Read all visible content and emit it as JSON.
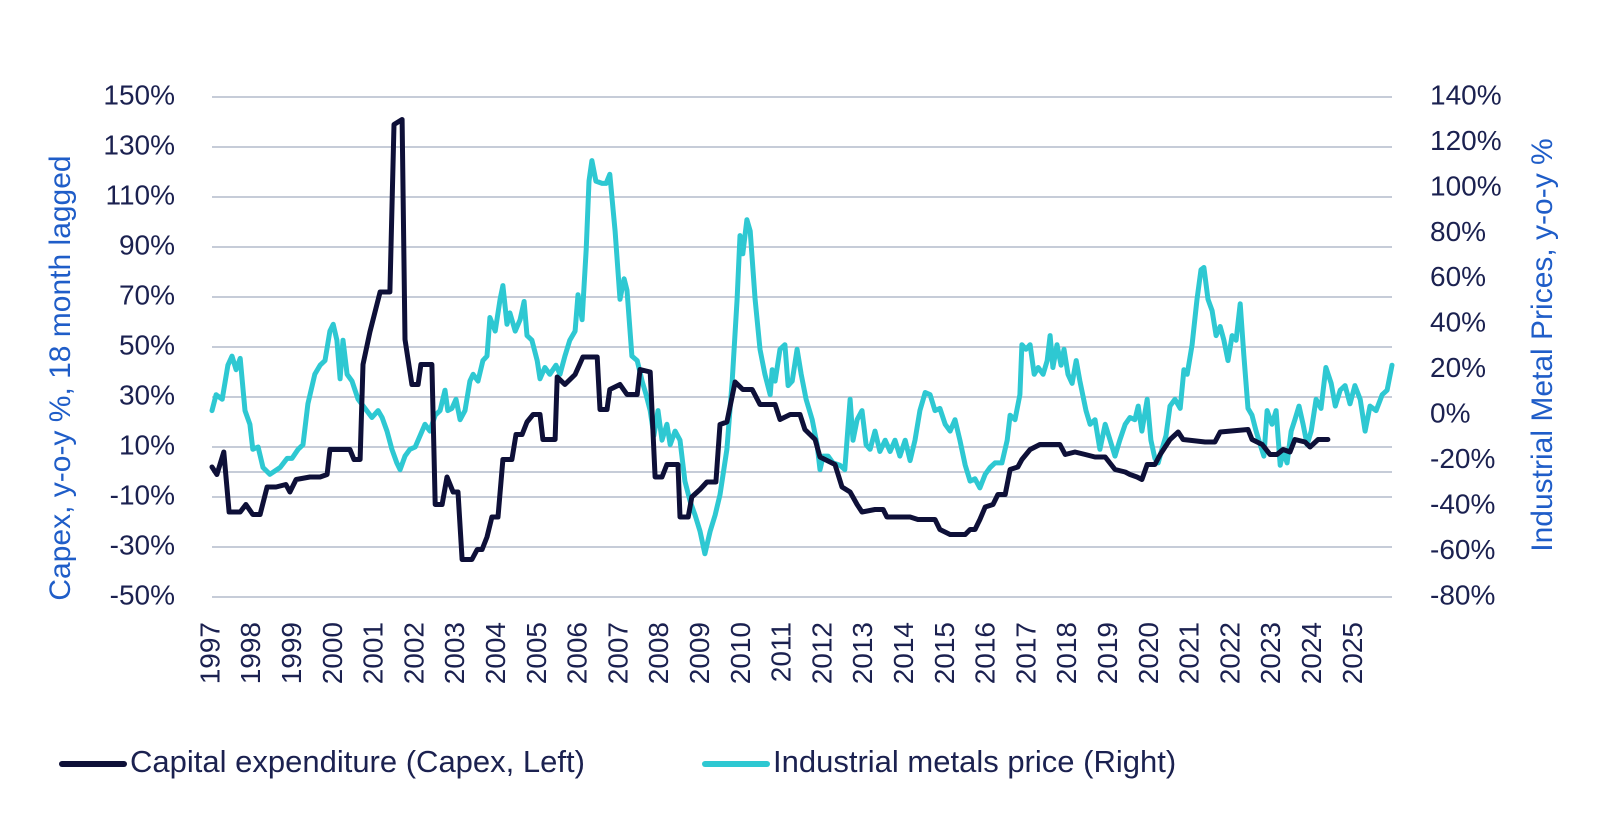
{
  "chart_data": {
    "type": "line",
    "y_label": "Capex, y-o-y %, 18 month lagged",
    "y2_label": "Industrial Metal Prices, y-o-y %",
    "xlim": [
      1997,
      2025.92
    ],
    "xticks": [
      1997,
      1998,
      1999,
      2000,
      2001,
      2002,
      2003,
      2004,
      2005,
      2006,
      2007,
      2008,
      2009,
      2010,
      2011,
      2012,
      2013,
      2014,
      2015,
      2016,
      2017,
      2018,
      2019,
      2020,
      2021,
      2022,
      2023,
      2024,
      2025
    ],
    "ylim": [
      -50,
      150
    ],
    "yticks": [
      {
        "value": -50,
        "label": "-50%"
      },
      {
        "value": -30,
        "label": "-30%"
      },
      {
        "value": -10,
        "label": "-10%"
      },
      {
        "value": 10,
        "label": "10%"
      },
      {
        "value": 30,
        "label": "30%"
      },
      {
        "value": 50,
        "label": "50%"
      },
      {
        "value": 70,
        "label": "70%"
      },
      {
        "value": 90,
        "label": "90%"
      },
      {
        "value": 110,
        "label": "110%"
      },
      {
        "value": 130,
        "label": "130%"
      },
      {
        "value": 150,
        "label": "150%"
      }
    ],
    "y2lim": [
      -80,
      140
    ],
    "y2ticks": [
      {
        "value": -80,
        "label": "-80%"
      },
      {
        "value": -60,
        "label": "-60%"
      },
      {
        "value": -40,
        "label": "-40%"
      },
      {
        "value": -20,
        "label": "-20%"
      },
      {
        "value": 0,
        "label": "0%"
      },
      {
        "value": 20,
        "label": "20%"
      },
      {
        "value": 40,
        "label": "40%"
      },
      {
        "value": 60,
        "label": "60%"
      },
      {
        "value": 80,
        "label": "80%"
      },
      {
        "value": 100,
        "label": "100%"
      },
      {
        "value": 120,
        "label": "120%"
      },
      {
        "value": 140,
        "label": "140%"
      }
    ],
    "grid": true,
    "legend": "bottom",
    "series": [
      {
        "name": "Capital expenditure (Capex, Left)",
        "color": "#0e1038",
        "axis": "y",
        "x": [
          1997.0,
          1997.12,
          1997.29,
          1997.42,
          1997.69,
          1997.83,
          1998.0,
          1998.18,
          1998.35,
          1998.57,
          1998.81,
          1998.91,
          1999.06,
          1999.4,
          1999.65,
          1999.82,
          1999.89,
          2000.21,
          2000.38,
          2000.48,
          2000.63,
          2000.7,
          2000.87,
          2001.12,
          2001.36,
          2001.46,
          2001.66,
          2001.73,
          2001.9,
          2002.05,
          2002.12,
          2002.39,
          2002.47,
          2002.64,
          2002.76,
          2002.91,
          2003.03,
          2003.13,
          2003.37,
          2003.5,
          2003.62,
          2003.74,
          2003.86,
          2004.01,
          2004.13,
          2004.35,
          2004.45,
          2004.6,
          2004.72,
          2004.87,
          2005.04,
          2005.11,
          2005.41,
          2005.46,
          2005.65,
          2005.9,
          2006.09,
          2006.44,
          2006.51,
          2006.68,
          2006.75,
          2007.0,
          2007.17,
          2007.42,
          2007.49,
          2007.74,
          2007.86,
          2008.03,
          2008.15,
          2008.42,
          2008.47,
          2008.67,
          2008.76,
          2008.96,
          2009.13,
          2009.35,
          2009.45,
          2009.62,
          2009.82,
          2010.01,
          2010.24,
          2010.43,
          2010.8,
          2010.92,
          2011.17,
          2011.41,
          2011.53,
          2011.78,
          2011.9,
          2012.27,
          2012.44,
          2012.64,
          2012.81,
          2012.93,
          2013.25,
          2013.45,
          2013.54,
          2014.11,
          2014.3,
          2014.72,
          2014.84,
          2015.09,
          2015.46,
          2015.58,
          2015.7,
          2015.82,
          2015.95,
          2016.14,
          2016.26,
          2016.44,
          2016.56,
          2016.75,
          2016.85,
          2017.05,
          2017.29,
          2017.78,
          2017.91,
          2018.15,
          2018.4,
          2018.64,
          2018.89,
          2019.13,
          2019.38,
          2019.5,
          2019.67,
          2019.79,
          2019.92,
          2020.11,
          2020.24,
          2020.48,
          2020.68,
          2020.8,
          2021.34,
          2021.58,
          2021.71,
          2022.39,
          2022.49,
          2022.74,
          2022.93,
          2023.1,
          2023.25,
          2023.42,
          2023.54,
          2023.79,
          2023.91,
          2024.11,
          2024.35
        ],
        "values": [
          2,
          -1,
          8,
          -16,
          -16,
          -13,
          -17,
          -17,
          -6,
          -6,
          -5,
          -8,
          -3,
          -2,
          -2,
          -1,
          9,
          9,
          9,
          5,
          5,
          43,
          56,
          72,
          72,
          139,
          141,
          53,
          35,
          35,
          43,
          43,
          -13,
          -13,
          -2,
          -8,
          -8,
          -35,
          -35,
          -31,
          -31,
          -26,
          -18,
          -18,
          5,
          5,
          15,
          15,
          20,
          23,
          23,
          13,
          13,
          38,
          35,
          39,
          46,
          46,
          25,
          25,
          33,
          35,
          31,
          31,
          41,
          40,
          -2,
          -2,
          3,
          3,
          -18,
          -18,
          -10,
          -7,
          -4,
          -4,
          19,
          20,
          36,
          33,
          33,
          27,
          27,
          21,
          23,
          23,
          17,
          13,
          6,
          3,
          -6,
          -8,
          -13,
          -16,
          -15,
          -15,
          -18,
          -18,
          -19,
          -19,
          -23,
          -25,
          -25,
          -23,
          -23,
          -19,
          -14,
          -13,
          -9,
          -9,
          1,
          2,
          5,
          9,
          11,
          11,
          7,
          8,
          7,
          6,
          6,
          1,
          0,
          -1,
          -2,
          -3,
          3,
          3,
          7,
          13,
          16,
          13,
          12,
          12,
          16,
          17,
          13,
          11,
          7,
          7,
          9,
          8,
          13,
          12,
          10,
          13,
          13
        ]
      },
      {
        "name": "Industrial metals price (Right)",
        "color": "#2ec8d2",
        "axis": "y2",
        "x": [
          1997.0,
          1997.1,
          1997.25,
          1997.39,
          1997.49,
          1997.59,
          1997.69,
          1997.81,
          1997.93,
          1998.0,
          1998.13,
          1998.25,
          1998.42,
          1998.67,
          1998.84,
          1998.96,
          1999.11,
          1999.23,
          1999.35,
          1999.52,
          1999.65,
          1999.77,
          1999.89,
          1999.97,
          2000.06,
          2000.14,
          2000.21,
          2000.31,
          2000.43,
          2000.58,
          2000.75,
          2000.92,
          2001.07,
          2001.17,
          2001.29,
          2001.41,
          2001.53,
          2001.61,
          2001.73,
          2001.85,
          2001.98,
          2002.1,
          2002.22,
          2002.34,
          2002.47,
          2002.59,
          2002.71,
          2002.78,
          2002.88,
          2002.98,
          2003.08,
          2003.2,
          2003.32,
          2003.4,
          2003.52,
          2003.64,
          2003.74,
          2003.81,
          2003.94,
          2004.06,
          2004.13,
          2004.23,
          2004.3,
          2004.43,
          2004.55,
          2004.65,
          2004.72,
          2004.84,
          2004.97,
          2005.04,
          2005.16,
          2005.28,
          2005.43,
          2005.53,
          2005.65,
          2005.77,
          2005.9,
          2005.97,
          2006.07,
          2006.17,
          2006.24,
          2006.31,
          2006.41,
          2006.56,
          2006.66,
          2006.75,
          2006.88,
          2007.0,
          2007.1,
          2007.17,
          2007.29,
          2007.42,
          2007.54,
          2007.64,
          2007.74,
          2007.83,
          2007.93,
          2008.03,
          2008.15,
          2008.23,
          2008.35,
          2008.47,
          2008.59,
          2008.72,
          2008.84,
          2008.96,
          2009.08,
          2009.21,
          2009.33,
          2009.45,
          2009.62,
          2009.75,
          2009.87,
          2009.94,
          2010.01,
          2010.11,
          2010.19,
          2010.31,
          2010.43,
          2010.55,
          2010.68,
          2010.73,
          2010.8,
          2010.92,
          2011.04,
          2011.12,
          2011.22,
          2011.34,
          2011.44,
          2011.56,
          2011.71,
          2011.83,
          2011.9,
          2011.98,
          2012.1,
          2012.22,
          2012.39,
          2012.51,
          2012.64,
          2012.71,
          2012.81,
          2012.93,
          2013.03,
          2013.13,
          2013.25,
          2013.37,
          2013.5,
          2013.62,
          2013.74,
          2013.86,
          2013.99,
          2014.11,
          2014.23,
          2014.35,
          2014.48,
          2014.6,
          2014.72,
          2014.84,
          2014.97,
          2015.09,
          2015.21,
          2015.33,
          2015.46,
          2015.58,
          2015.7,
          2015.82,
          2015.95,
          2016.07,
          2016.19,
          2016.36,
          2016.49,
          2016.56,
          2016.68,
          2016.8,
          2016.85,
          2016.95,
          2017.05,
          2017.15,
          2017.25,
          2017.37,
          2017.47,
          2017.54,
          2017.61,
          2017.71,
          2017.81,
          2017.88,
          2017.98,
          2018.08,
          2018.18,
          2018.27,
          2018.42,
          2018.52,
          2018.64,
          2018.76,
          2018.89,
          2019.01,
          2019.13,
          2019.25,
          2019.38,
          2019.5,
          2019.62,
          2019.7,
          2019.79,
          2019.92,
          2020.01,
          2020.11,
          2020.19,
          2020.28,
          2020.38,
          2020.48,
          2020.6,
          2020.73,
          2020.82,
          2020.9,
          2021.02,
          2021.14,
          2021.24,
          2021.31,
          2021.41,
          2021.51,
          2021.61,
          2021.71,
          2021.8,
          2021.9,
          2022.0,
          2022.1,
          2022.2,
          2022.29,
          2022.39,
          2022.49,
          2022.59,
          2022.69,
          2022.78,
          2022.86,
          2022.98,
          2023.08,
          2023.18,
          2023.25,
          2023.35,
          2023.45,
          2023.54,
          2023.64,
          2023.74,
          2023.84,
          2023.94,
          2024.06,
          2024.18,
          2024.3,
          2024.43,
          2024.53,
          2024.65,
          2024.77,
          2024.89,
          2025.01,
          2025.14,
          2025.26,
          2025.38,
          2025.53,
          2025.68,
          2025.8,
          2025.92
        ],
        "values": [
          2,
          9,
          7,
          22,
          26,
          20,
          25,
          2,
          -4,
          -15,
          -14,
          -23,
          -26,
          -23,
          -19,
          -19,
          -15,
          -13,
          5,
          18,
          22,
          24,
          37,
          40,
          33,
          16,
          33,
          18,
          15,
          7,
          3,
          -1,
          2,
          -1,
          -7,
          -15,
          -21,
          -24,
          -18,
          -15,
          -14,
          -9,
          -4,
          -7,
          0,
          2,
          11,
          2,
          3,
          7,
          -2,
          2,
          15,
          18,
          15,
          24,
          26,
          43,
          37,
          51,
          57,
          40,
          45,
          37,
          42,
          50,
          35,
          33,
          24,
          16,
          21,
          18,
          22,
          18,
          26,
          33,
          37,
          53,
          42,
          73,
          103,
          112,
          103,
          102,
          102,
          106,
          81,
          51,
          60,
          55,
          26,
          24,
          15,
          9,
          2,
          -9,
          2,
          -11,
          -4,
          -13,
          -7,
          -11,
          -29,
          -38,
          -44,
          -51,
          -61,
          -51,
          -44,
          -35,
          -15,
          15,
          51,
          79,
          71,
          86,
          81,
          51,
          29,
          18,
          9,
          20,
          15,
          29,
          31,
          13,
          15,
          29,
          18,
          7,
          -2,
          -13,
          -24,
          -18,
          -18,
          -21,
          -22,
          -24,
          7,
          -11,
          -2,
          2,
          -13,
          -15,
          -7,
          -16,
          -11,
          -16,
          -11,
          -18,
          -11,
          -20,
          -11,
          2,
          10,
          9,
          2,
          3,
          -4,
          -7,
          -2,
          -11,
          -22,
          -29,
          -28,
          -32,
          -26,
          -23,
          -21,
          -21,
          -11,
          0,
          -2,
          9,
          31,
          29,
          31,
          18,
          21,
          18,
          24,
          35,
          21,
          31,
          22,
          29,
          18,
          14,
          24,
          15,
          2,
          -4,
          -2,
          -15,
          -4,
          -11,
          -18,
          -11,
          -4,
          -1,
          -2,
          4,
          -7,
          7,
          -11,
          -19,
          -21,
          -15,
          -9,
          4,
          7,
          3,
          20,
          18,
          31,
          51,
          64,
          65,
          51,
          46,
          35,
          39,
          33,
          24,
          35,
          33,
          49,
          26,
          3,
          0,
          -7,
          -13,
          -18,
          2,
          -4,
          2,
          -22,
          -16,
          -21,
          -7,
          -2,
          4,
          -4,
          -13,
          -7,
          7,
          3,
          21,
          14,
          4,
          11,
          13,
          5,
          13,
          7,
          -7,
          4,
          2,
          9,
          11,
          22
        ]
      }
    ]
  }
}
